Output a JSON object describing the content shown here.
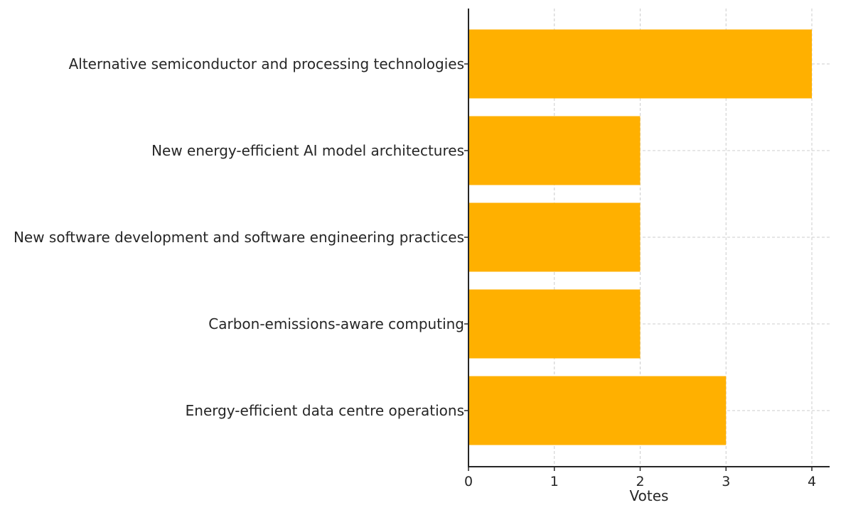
{
  "chart_data": {
    "type": "bar",
    "orientation": "horizontal",
    "categories": [
      "Alternative semiconductor and processing technologies",
      "New energy-efficient AI model architectures",
      "New software development and software engineering practices",
      "Carbon-emissions-aware computing",
      "Energy-efficient data centre operations"
    ],
    "values": [
      4,
      2,
      2,
      2,
      3
    ],
    "xlabel": "Votes",
    "ylabel": "",
    "title": "",
    "xlim": [
      0,
      4.2
    ],
    "x_ticks": [
      "0",
      "1",
      "2",
      "3",
      "4"
    ],
    "grid": true,
    "bar_color": "#FFB000"
  }
}
